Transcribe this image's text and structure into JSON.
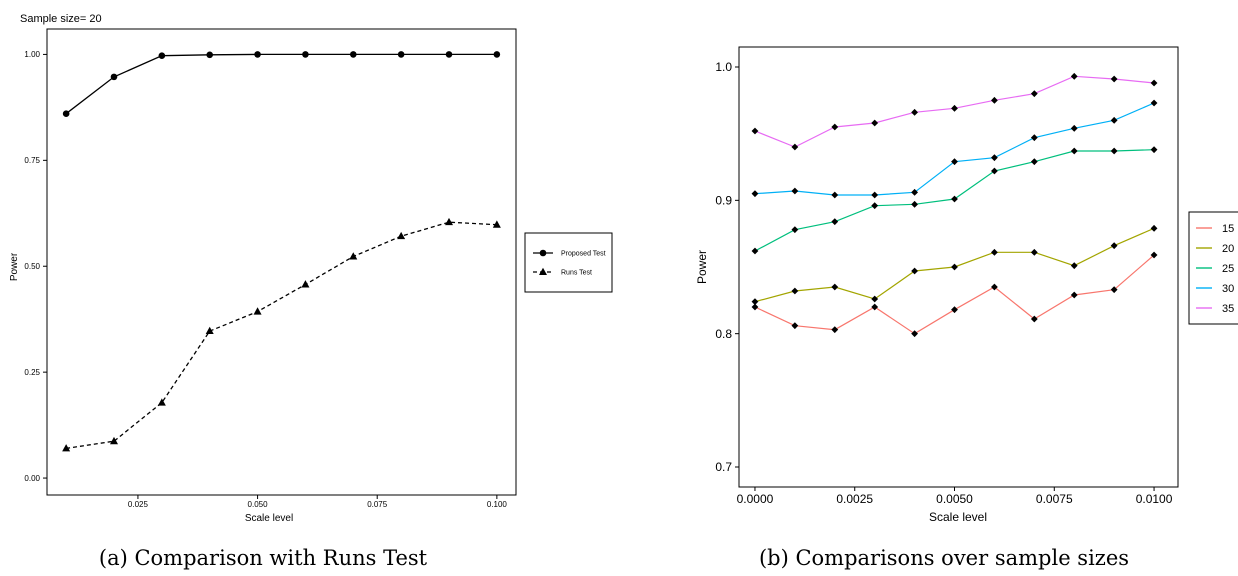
{
  "figure": {
    "left_caption": "(a) Comparison with Runs Test",
    "right_caption": "(b) Comparisons over sample sizes"
  },
  "chart_data": [
    {
      "type": "line",
      "subtitle": "Sample size= 20",
      "xlabel": "Scale level",
      "ylabel": "Power",
      "xlim": [
        0.006,
        0.104
      ],
      "ylim": [
        -0.04,
        1.06
      ],
      "x_ticks": [
        0.025,
        0.05,
        0.075,
        0.1
      ],
      "x_tick_labels": [
        "0.025",
        "0.050",
        "0.075",
        "0.100"
      ],
      "y_ticks": [
        0,
        0.25,
        0.5,
        0.75,
        1
      ],
      "y_tick_labels": [
        "0.00",
        "0.25",
        "0.50",
        "0.75",
        "1.00"
      ],
      "grid": false,
      "legend_position": "right",
      "x": [
        0.01,
        0.02,
        0.03,
        0.04,
        0.05,
        0.06,
        0.07,
        0.08,
        0.09,
        0.1
      ],
      "series": [
        {
          "name": "Proposed Test",
          "marker": "circle",
          "dash": "solid",
          "color": "#000000",
          "values": [
            0.86,
            0.947,
            0.997,
            0.999,
            1.0,
            1.0,
            1.0,
            1.0,
            1.0,
            1.0
          ]
        },
        {
          "name": "Runs Test",
          "marker": "triangle",
          "dash": "dashed",
          "color": "#000000",
          "values": [
            0.07,
            0.087,
            0.178,
            0.347,
            0.393,
            0.457,
            0.523,
            0.571,
            0.604,
            0.598
          ]
        }
      ]
    },
    {
      "type": "line",
      "xlabel": "Scale level",
      "ylabel": "Power",
      "xlim": [
        -0.0004,
        0.0106
      ],
      "ylim": [
        0.685,
        1.015
      ],
      "x_ticks": [
        0.0,
        0.0025,
        0.005,
        0.0075,
        0.01
      ],
      "x_tick_labels": [
        "0.0000",
        "0.0025",
        "0.0050",
        "0.0075",
        "0.0100"
      ],
      "y_ticks": [
        0.7,
        0.8,
        0.9,
        1.0
      ],
      "y_tick_labels": [
        "0.7",
        "0.8",
        "0.9",
        "1.0"
      ],
      "grid": false,
      "legend_position": "right",
      "x": [
        0.0,
        0.001,
        0.002,
        0.003,
        0.004,
        0.005,
        0.006,
        0.007,
        0.008,
        0.009,
        0.01
      ],
      "series": [
        {
          "name": "15",
          "color": "#F8766D",
          "values": [
            0.82,
            0.806,
            0.803,
            0.82,
            0.8,
            0.818,
            0.835,
            0.811,
            0.829,
            0.833,
            0.859
          ]
        },
        {
          "name": "20",
          "color": "#A3A500",
          "values": [
            0.824,
            0.832,
            0.835,
            0.826,
            0.847,
            0.85,
            0.861,
            0.861,
            0.851,
            0.866,
            0.879
          ]
        },
        {
          "name": "25",
          "color": "#00BF7D",
          "values": [
            0.862,
            0.878,
            0.884,
            0.896,
            0.897,
            0.901,
            0.922,
            0.929,
            0.937,
            0.937,
            0.938
          ]
        },
        {
          "name": "30",
          "color": "#00B0F6",
          "values": [
            0.905,
            0.907,
            0.904,
            0.904,
            0.906,
            0.929,
            0.932,
            0.947,
            0.954,
            0.96,
            0.973
          ]
        },
        {
          "name": "35",
          "color": "#E76BF3",
          "values": [
            0.952,
            0.94,
            0.955,
            0.958,
            0.966,
            0.969,
            0.975,
            0.98,
            0.993,
            0.991,
            0.988
          ]
        }
      ]
    }
  ]
}
